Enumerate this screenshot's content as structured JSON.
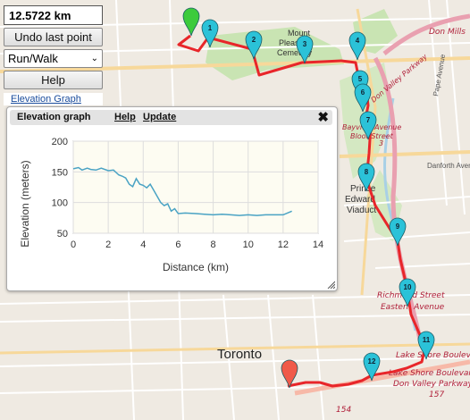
{
  "controls": {
    "distance": "12.5722 km",
    "undo_label": "Undo last point",
    "mode_value": "Run/Walk",
    "help_label": "Help",
    "elevation_link": "Elevation Graph"
  },
  "elevation_window": {
    "title": "Elevation graph",
    "help": "Help",
    "update": "Update",
    "close": "✖"
  },
  "map_labels": {
    "cemetery": [
      "Mount",
      "Pleasant",
      "Cemetery"
    ],
    "don_mills": "Don Mills",
    "dvp": "Don Valley Parkway",
    "pape": "Pape Avenue",
    "danforth": "Danforth Avenue",
    "bayview": [
      "Bayview Avenue",
      "Bloor Street"
    ],
    "bloor_num": "3",
    "pev": [
      "Prince",
      "Edward",
      "Viaduct"
    ],
    "richmond": [
      "Richmond Street",
      "Eastern Avenue"
    ],
    "lakeshore": [
      "Lake Shore Boulevard",
      "Lake Shore Boulevard",
      "Don Valley Parkway"
    ],
    "hwy": "157",
    "toronto": "Toronto",
    "hwy154": "154",
    "bloor_top": "Bloor"
  },
  "markers": [
    "1",
    "2",
    "3",
    "4",
    "5",
    "6",
    "7",
    "8",
    "9",
    "10",
    "11",
    "12"
  ],
  "colors": {
    "route": "#e8262a",
    "marker": "#2bc2d8",
    "start": "#3ccb3c",
    "end": "#f05a4a"
  },
  "chart_data": {
    "type": "line",
    "xlabel": "Distance (km)",
    "ylabel": "Elevation (meters)",
    "xlim": [
      0,
      14
    ],
    "ylim": [
      50,
      200
    ],
    "xticks": [
      0,
      2,
      4,
      6,
      8,
      10,
      12,
      14
    ],
    "yticks": [
      50,
      100,
      150,
      200
    ],
    "grid": true,
    "color": "#4aa3c4",
    "x": [
      0,
      0.3,
      0.5,
      0.8,
      1.0,
      1.3,
      1.6,
      2.0,
      2.3,
      2.6,
      2.8,
      3.0,
      3.2,
      3.4,
      3.6,
      3.8,
      4.0,
      4.2,
      4.4,
      4.6,
      4.8,
      5.0,
      5.2,
      5.4,
      5.6,
      5.8,
      6.0,
      6.4,
      7.0,
      7.5,
      8.0,
      8.5,
      9.0,
      9.5,
      10.0,
      10.5,
      11.0,
      11.5,
      12.0,
      12.5
    ],
    "y": [
      155,
      157,
      153,
      156,
      154,
      153,
      156,
      152,
      153,
      145,
      143,
      140,
      130,
      126,
      139,
      130,
      128,
      124,
      130,
      120,
      110,
      100,
      95,
      98,
      86,
      90,
      82,
      83,
      82,
      81,
      80,
      81,
      80,
      79,
      80,
      79,
      80,
      80,
      80,
      86
    ]
  }
}
